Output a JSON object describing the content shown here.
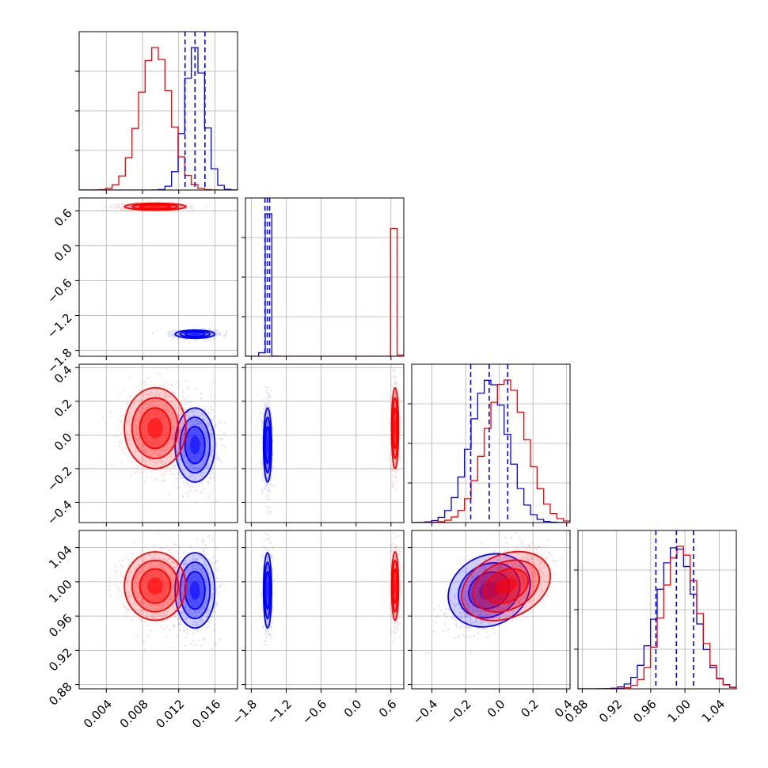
{
  "chart_data": {
    "type": "corner",
    "colors": {
      "series_1": "#0000ff",
      "series_2": "#ff0000",
      "grid": "#b0b0b0"
    },
    "grid": true,
    "parameters": [
      {
        "range": [
          0.001,
          0.0185
        ],
        "ticks": [
          "0.004",
          "0.008",
          "0.012",
          "0.016"
        ],
        "tick_values": [
          0.004,
          0.008,
          0.012,
          0.016
        ]
      },
      {
        "range": [
          -1.9,
          0.82
        ],
        "ticks": [
          "−1.8",
          "−1.2",
          "−0.6",
          "0.0",
          "0.6"
        ],
        "tick_values": [
          -1.8,
          -1.2,
          -0.6,
          0.0,
          0.6
        ]
      },
      {
        "range": [
          -0.52,
          0.42
        ],
        "ticks": [
          "−0.4",
          "−0.2",
          "0.0",
          "0.2",
          "0.4"
        ],
        "tick_values": [
          -0.4,
          -0.2,
          0.0,
          0.2,
          0.4
        ]
      },
      {
        "range": [
          0.875,
          1.06
        ],
        "ticks": [
          "0.88",
          "0.92",
          "0.96",
          "1.00",
          "1.04"
        ],
        "tick_values": [
          0.88,
          0.92,
          0.96,
          1.0,
          1.04
        ]
      }
    ],
    "series": [
      {
        "color": "#0000ff",
        "mean": [
          0.0138,
          -1.52,
          -0.06,
          0.99
        ],
        "sd": [
          0.0011,
          0.035,
          0.11,
          0.022
        ],
        "quantiles": [
          [
            0.0127,
            0.0138,
            0.0149
          ],
          [
            -1.565,
            -1.525,
            -1.485
          ],
          [
            -0.17,
            -0.06,
            0.05
          ],
          [
            0.966,
            0.99,
            1.01
          ]
        ]
      },
      {
        "color": "#ff0000",
        "mean": [
          0.0094,
          0.67,
          0.04,
          0.995
        ],
        "sd": [
          0.0017,
          0.03,
          0.12,
          0.02
        ]
      }
    ],
    "correlation": {
      "p3_p4": 0.6
    }
  }
}
